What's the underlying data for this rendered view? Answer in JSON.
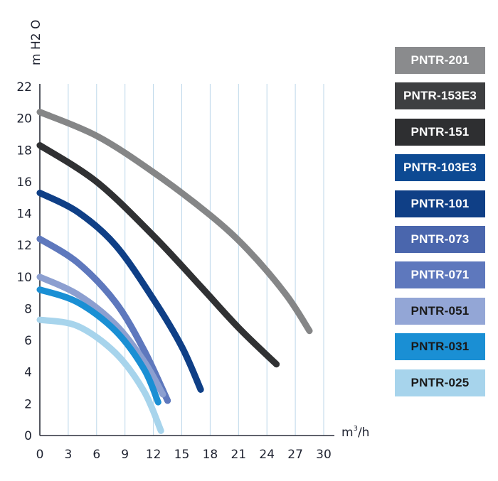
{
  "chart_data": {
    "type": "line",
    "title": "",
    "xlabel": "m3/h",
    "xlabel_base": "m",
    "xlabel_sup": "3",
    "xlabel_suffix": "/h",
    "ylabel": "m H2 O",
    "xlim": [
      0,
      30
    ],
    "ylim": [
      0,
      22
    ],
    "x_ticks": [
      0,
      3,
      6,
      9,
      12,
      15,
      18,
      21,
      24,
      27,
      30
    ],
    "y_ticks": [
      0,
      2,
      4,
      6,
      8,
      10,
      12,
      14,
      16,
      18,
      20,
      22
    ],
    "grid": "vertical",
    "legend_position": "right",
    "series": [
      {
        "name": "PNTR-201",
        "color": "#858687",
        "points": [
          [
            0,
            20.4
          ],
          [
            6,
            18.9
          ],
          [
            12,
            16.6
          ],
          [
            18,
            13.9
          ],
          [
            22,
            11.7
          ],
          [
            26,
            8.9
          ],
          [
            28.5,
            6.6
          ]
        ]
      },
      {
        "name": "PNTR-153E3",
        "color": "#3f4042",
        "points": [
          [
            0,
            18.3
          ],
          [
            6,
            16.0
          ],
          [
            12,
            12.6
          ],
          [
            17,
            9.4
          ],
          [
            21,
            6.8
          ],
          [
            25,
            4.5
          ]
        ]
      },
      {
        "name": "PNTR-151",
        "color": "#303133",
        "points": [
          [
            0,
            18.3
          ],
          [
            6,
            16.0
          ],
          [
            12,
            12.6
          ],
          [
            17,
            9.4
          ],
          [
            21,
            6.8
          ],
          [
            25,
            4.5
          ]
        ]
      },
      {
        "name": "PNTR-103E3",
        "color": "#0d4a93",
        "points": [
          [
            0,
            15.3
          ],
          [
            4,
            14.1
          ],
          [
            8,
            12.0
          ],
          [
            12,
            8.6
          ],
          [
            15,
            5.6
          ],
          [
            17,
            2.9
          ]
        ]
      },
      {
        "name": "PNTR-101",
        "color": "#0f3f86",
        "points": [
          [
            0,
            15.3
          ],
          [
            4,
            14.1
          ],
          [
            8,
            12.0
          ],
          [
            12,
            8.6
          ],
          [
            15,
            5.6
          ],
          [
            17,
            2.9
          ]
        ]
      },
      {
        "name": "PNTR-073",
        "color": "#4a66ad",
        "points": [
          [
            0,
            12.4
          ],
          [
            4,
            10.9
          ],
          [
            8,
            8.4
          ],
          [
            11,
            5.4
          ],
          [
            13.5,
            2.2
          ]
        ]
      },
      {
        "name": "PNTR-071",
        "color": "#5e78bd",
        "points": [
          [
            0,
            12.4
          ],
          [
            4,
            10.9
          ],
          [
            8,
            8.4
          ],
          [
            11,
            5.4
          ],
          [
            13.5,
            2.2
          ]
        ]
      },
      {
        "name": "PNTR-051",
        "color": "#8c9fd0",
        "points": [
          [
            0,
            10.0
          ],
          [
            4,
            8.9
          ],
          [
            8,
            7.0
          ],
          [
            11,
            4.7
          ],
          [
            13,
            2.6
          ]
        ]
      },
      {
        "name": "PNTR-031",
        "color": "#1a8fd4",
        "points": [
          [
            0,
            9.2
          ],
          [
            4,
            8.4
          ],
          [
            8,
            6.6
          ],
          [
            11,
            4.2
          ],
          [
            12.5,
            2.1
          ]
        ]
      },
      {
        "name": "PNTR-025",
        "color": "#a7d4ec",
        "points": [
          [
            0,
            7.3
          ],
          [
            4,
            6.9
          ],
          [
            8,
            5.2
          ],
          [
            11,
            2.8
          ],
          [
            12.8,
            0.3
          ]
        ]
      }
    ]
  },
  "legend": {
    "items": [
      {
        "label": "PNTR-201",
        "color": "#8a8b8d",
        "light": false
      },
      {
        "label": "PNTR-153E3",
        "color": "#3e3f41",
        "light": false
      },
      {
        "label": "PNTR-151",
        "color": "#2e2f31",
        "light": false
      },
      {
        "label": "PNTR-103E3",
        "color": "#0d4a93",
        "light": false
      },
      {
        "label": "PNTR-101",
        "color": "#0f3f86",
        "light": false
      },
      {
        "label": "PNTR-073",
        "color": "#4a66ad",
        "light": false
      },
      {
        "label": "PNTR-071",
        "color": "#5e78bd",
        "light": false
      },
      {
        "label": "PNTR-051",
        "color": "#93a6d6",
        "light": true
      },
      {
        "label": "PNTR-031",
        "color": "#1a8fd4",
        "light": true
      },
      {
        "label": "PNTR-025",
        "color": "#a7d4ec",
        "light": true
      }
    ]
  }
}
